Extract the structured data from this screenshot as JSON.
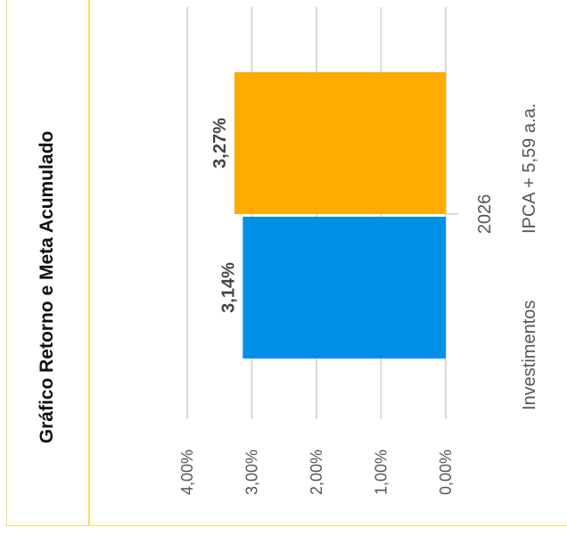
{
  "title": "Gráfico Retorno e Meta Acumulado",
  "colors": {
    "frame": "#f0e060",
    "grid": "#d9d9d9",
    "text": "#555555"
  },
  "chart_data": {
    "type": "bar",
    "orientation": "horizontal",
    "categories": [
      "2026"
    ],
    "value_axis": {
      "min": 0,
      "max": 4,
      "ticks": [
        0,
        1,
        2,
        3,
        4
      ],
      "tick_labels": [
        "0,00%",
        "1,00%",
        "2,00%",
        "3,00%",
        "4,00%"
      ]
    },
    "series": [
      {
        "name": "Investimentos",
        "values": [
          3.14
        ],
        "data_labels": [
          "3,14%"
        ],
        "color": "#0090e8"
      },
      {
        "name": "IPCA + 5,59 a.a.",
        "values": [
          3.27
        ],
        "data_labels": [
          "3,27%"
        ],
        "color": "#ffab00"
      }
    ],
    "grid": true,
    "legend_position": "bottom"
  }
}
